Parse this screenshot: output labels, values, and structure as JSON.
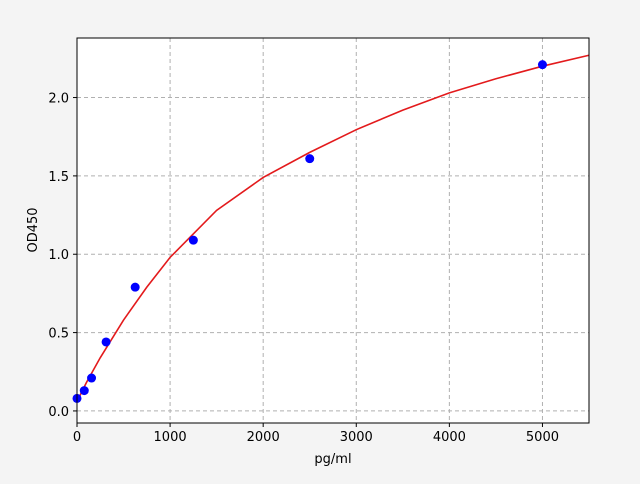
{
  "chart_data": {
    "type": "scatter",
    "title": "",
    "xlabel": "pg/ml",
    "ylabel": "OD450",
    "xlim": [
      0,
      5500
    ],
    "ylim": [
      -0.077,
      2.38
    ],
    "xticks": [
      0,
      1000,
      2000,
      3000,
      4000,
      5000
    ],
    "yticks": [
      0.0,
      0.5,
      1.0,
      1.5,
      2.0
    ],
    "ytick_labels": [
      "0.0",
      "0.5",
      "1.0",
      "1.5",
      "2.0"
    ],
    "xtick_labels": [
      "0",
      "1000",
      "2000",
      "3000",
      "4000",
      "5000"
    ],
    "grid": true,
    "points": {
      "color": "#0000ff",
      "x": [
        0,
        78.125,
        156.25,
        312.5,
        625,
        1250,
        2500,
        5000
      ],
      "y": [
        0.08,
        0.13,
        0.21,
        0.44,
        0.79,
        1.09,
        1.61,
        2.21
      ]
    },
    "fit_curve": {
      "color": "#e31a1c",
      "x": [
        0,
        100,
        250,
        500,
        750,
        1000,
        1500,
        2000,
        2500,
        3000,
        3500,
        4000,
        4500,
        5000,
        5500
      ],
      "y": [
        0.06,
        0.18,
        0.34,
        0.58,
        0.79,
        0.98,
        1.28,
        1.49,
        1.65,
        1.795,
        1.92,
        2.03,
        2.12,
        2.2,
        2.27
      ]
    }
  }
}
